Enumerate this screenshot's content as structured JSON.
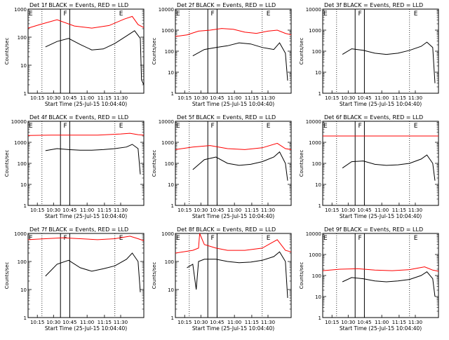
{
  "figure": {
    "start_time_label": "Start Time (25-Jul-15 10:04:40)",
    "ylabel": "Counts/sec",
    "series_colors": {
      "events": "#000000",
      "lld": "#ff0000"
    }
  },
  "chart_data": [
    {
      "type": "line",
      "title": "Det 1f BLACK = Events, RED = LLD",
      "yscale": "log",
      "ylim": [
        1,
        1000
      ],
      "y_ticks": [
        "1",
        "10",
        "100",
        "1000"
      ],
      "x_ticks": [
        "10:15",
        "10:30",
        "10:45",
        "11:00",
        "11:15",
        "11:30"
      ],
      "markers": [
        "E",
        "F",
        "E"
      ],
      "series": [
        {
          "key": "lld",
          "x": [
            0,
            0.1,
            0.25,
            0.4,
            0.55,
            0.7,
            0.83,
            0.9,
            0.95,
            1.0
          ],
          "y": [
            210,
            280,
            420,
            250,
            210,
            260,
            440,
            550,
            280,
            220
          ]
        },
        {
          "key": "events",
          "x": [
            0.15,
            0.25,
            0.35,
            0.45,
            0.55,
            0.65,
            0.75,
            0.85,
            0.92,
            0.97,
            0.98,
            1.0
          ],
          "y": [
            45,
            70,
            90,
            55,
            35,
            38,
            60,
            110,
            170,
            90,
            3,
            2
          ]
        }
      ]
    },
    {
      "type": "line",
      "title": "Det 2f BLACK = Events, RED = LLD",
      "yscale": "log",
      "ylim": [
        1,
        10000
      ],
      "y_ticks": [
        "1",
        "10",
        "100",
        "1000",
        "10000"
      ],
      "x_ticks": [
        "10:15",
        "10:30",
        "10:45",
        "11:00",
        "11:15",
        "11:30"
      ],
      "markers": [
        "E",
        "F",
        "E"
      ],
      "series": [
        {
          "key": "lld",
          "x": [
            0,
            0.1,
            0.2,
            0.3,
            0.4,
            0.5,
            0.6,
            0.7,
            0.8,
            0.88,
            0.95,
            1.0
          ],
          "y": [
            500,
            600,
            900,
            1000,
            1200,
            1100,
            800,
            700,
            900,
            1000,
            700,
            600
          ]
        },
        {
          "key": "events",
          "x": [
            0.15,
            0.25,
            0.35,
            0.45,
            0.55,
            0.65,
            0.75,
            0.85,
            0.9,
            0.95,
            0.97
          ],
          "y": [
            60,
            120,
            150,
            180,
            250,
            220,
            150,
            120,
            250,
            80,
            4
          ]
        }
      ]
    },
    {
      "type": "line",
      "title": "Det 3f BLACK = Events, RED = LLD",
      "yscale": "log",
      "ylim": [
        1,
        10000
      ],
      "y_ticks": [
        "1",
        "10",
        "100",
        "1000",
        "10000"
      ],
      "x_ticks": [
        "10:15",
        "10:30",
        "10:45",
        "11:00",
        "11:15",
        "11:30"
      ],
      "markers": [
        "E",
        "F",
        "E"
      ],
      "series": [
        {
          "key": "events",
          "x": [
            0.17,
            0.25,
            0.35,
            0.45,
            0.55,
            0.65,
            0.75,
            0.85,
            0.9,
            0.95,
            0.97
          ],
          "y": [
            70,
            130,
            110,
            80,
            70,
            80,
            110,
            170,
            270,
            150,
            3
          ]
        }
      ]
    },
    {
      "type": "line",
      "title": "Det 4f BLACK = Events, RED = LLD",
      "yscale": "log",
      "ylim": [
        1,
        10000
      ],
      "y_ticks": [
        "1",
        "10",
        "100",
        "1000",
        "10000"
      ],
      "x_ticks": [
        "10:15",
        "10:30",
        "10:45",
        "11:00",
        "11:15",
        "11:30"
      ],
      "markers": [
        "E",
        "F",
        "E"
      ],
      "series": [
        {
          "key": "lld",
          "x": [
            0,
            0.2,
            0.4,
            0.6,
            0.8,
            0.88,
            0.95,
            1.0
          ],
          "y": [
            2100,
            2200,
            2200,
            2200,
            2500,
            2700,
            2300,
            2200
          ]
        },
        {
          "key": "events",
          "x": [
            0.15,
            0.25,
            0.35,
            0.45,
            0.55,
            0.65,
            0.75,
            0.85,
            0.9,
            0.95,
            0.97
          ],
          "y": [
            400,
            500,
            450,
            420,
            420,
            450,
            500,
            600,
            800,
            500,
            30
          ]
        }
      ]
    },
    {
      "type": "line",
      "title": "Det 5f BLACK = Events, RED = LLD",
      "yscale": "log",
      "ylim": [
        1,
        10000
      ],
      "y_ticks": [
        "1",
        "10",
        "100",
        "1000",
        "10000"
      ],
      "x_ticks": [
        "10:15",
        "10:30",
        "10:45",
        "11:00",
        "11:15",
        "11:30"
      ],
      "markers": [
        "E",
        "F",
        "E"
      ],
      "series": [
        {
          "key": "lld",
          "x": [
            0,
            0.15,
            0.3,
            0.45,
            0.6,
            0.75,
            0.88,
            0.95,
            1.0
          ],
          "y": [
            450,
            600,
            700,
            500,
            450,
            550,
            900,
            500,
            450
          ]
        },
        {
          "key": "events",
          "x": [
            0.15,
            0.25,
            0.35,
            0.45,
            0.55,
            0.65,
            0.75,
            0.85,
            0.9,
            0.95,
            0.97
          ],
          "y": [
            50,
            150,
            200,
            100,
            80,
            90,
            120,
            200,
            350,
            100,
            15
          ]
        }
      ]
    },
    {
      "type": "line",
      "title": "Det 6f BLACK = Events, RED = LLD",
      "yscale": "log",
      "ylim": [
        1,
        10000
      ],
      "y_ticks": [
        "1",
        "10",
        "100",
        "1000",
        "10000"
      ],
      "x_ticks": [
        "10:15",
        "10:30",
        "10:45",
        "11:00",
        "11:15",
        "11:30"
      ],
      "markers": [
        "E",
        "F",
        "E"
      ],
      "series": [
        {
          "key": "lld",
          "x": [
            0,
            0.5,
            1.0
          ],
          "y": [
            2000,
            2000,
            2000
          ]
        },
        {
          "key": "events",
          "x": [
            0.17,
            0.25,
            0.35,
            0.45,
            0.55,
            0.65,
            0.75,
            0.85,
            0.9,
            0.95,
            0.97
          ],
          "y": [
            60,
            120,
            130,
            90,
            80,
            85,
            100,
            160,
            250,
            100,
            15
          ]
        }
      ]
    },
    {
      "type": "line",
      "title": "Det 7f BLACK = Events, RED = LLD",
      "yscale": "log",
      "ylim": [
        1,
        1000
      ],
      "y_ticks": [
        "1",
        "10",
        "100",
        "1000"
      ],
      "x_ticks": [
        "10:15",
        "10:30",
        "10:45",
        "11:00",
        "11:15",
        "11:30"
      ],
      "markers": [
        "E",
        "F",
        "E"
      ],
      "series": [
        {
          "key": "lld",
          "x": [
            0,
            0.15,
            0.3,
            0.45,
            0.6,
            0.75,
            0.88,
            0.95,
            1.0
          ],
          "y": [
            600,
            650,
            700,
            650,
            600,
            650,
            800,
            650,
            550
          ]
        },
        {
          "key": "events",
          "x": [
            0.15,
            0.25,
            0.35,
            0.45,
            0.55,
            0.65,
            0.75,
            0.85,
            0.9,
            0.95,
            0.97
          ],
          "y": [
            30,
            80,
            110,
            60,
            45,
            55,
            70,
            120,
            200,
            100,
            8
          ]
        }
      ]
    },
    {
      "type": "line",
      "title": "Det 8f BLACK = Events, RED = LLD",
      "yscale": "log",
      "ylim": [
        1,
        1000
      ],
      "y_ticks": [
        "1",
        "10",
        "100",
        "1000"
      ],
      "x_ticks": [
        "10:15",
        "10:30",
        "10:45",
        "11:00",
        "11:15",
        "11:30"
      ],
      "markers": [
        "E",
        "F",
        "E"
      ],
      "series": [
        {
          "key": "lld",
          "x": [
            0,
            0.15,
            0.2,
            0.21,
            0.25,
            0.35,
            0.45,
            0.6,
            0.75,
            0.88,
            0.95,
            1.0
          ],
          "y": [
            200,
            250,
            300,
            1000,
            400,
            300,
            250,
            250,
            300,
            600,
            250,
            220
          ]
        },
        {
          "key": "events",
          "x": [
            0.1,
            0.15,
            0.18,
            0.2,
            0.25,
            0.35,
            0.45,
            0.55,
            0.65,
            0.75,
            0.85,
            0.9,
            0.95,
            0.97
          ],
          "y": [
            60,
            80,
            10,
            100,
            120,
            120,
            100,
            90,
            95,
            110,
            150,
            220,
            100,
            5
          ]
        }
      ]
    },
    {
      "type": "line",
      "title": "Det 9f BLACK = Events, RED = LLD",
      "yscale": "log",
      "ylim": [
        1,
        10000
      ],
      "y_ticks": [
        "1",
        "10",
        "100",
        "1000",
        "10000"
      ],
      "x_ticks": [
        "10:15",
        "10:30",
        "10:45",
        "11:00",
        "11:15",
        "11:30"
      ],
      "markers": [
        "E",
        "F",
        "E"
      ],
      "series": [
        {
          "key": "lld",
          "x": [
            0,
            0.15,
            0.3,
            0.45,
            0.6,
            0.75,
            0.88,
            0.95,
            1.0
          ],
          "y": [
            170,
            200,
            210,
            180,
            170,
            190,
            260,
            180,
            160
          ]
        },
        {
          "key": "events",
          "x": [
            0.17,
            0.25,
            0.35,
            0.45,
            0.55,
            0.65,
            0.75,
            0.85,
            0.9,
            0.95,
            0.97
          ],
          "y": [
            50,
            80,
            70,
            55,
            50,
            55,
            65,
            100,
            150,
            70,
            10
          ]
        }
      ]
    }
  ]
}
